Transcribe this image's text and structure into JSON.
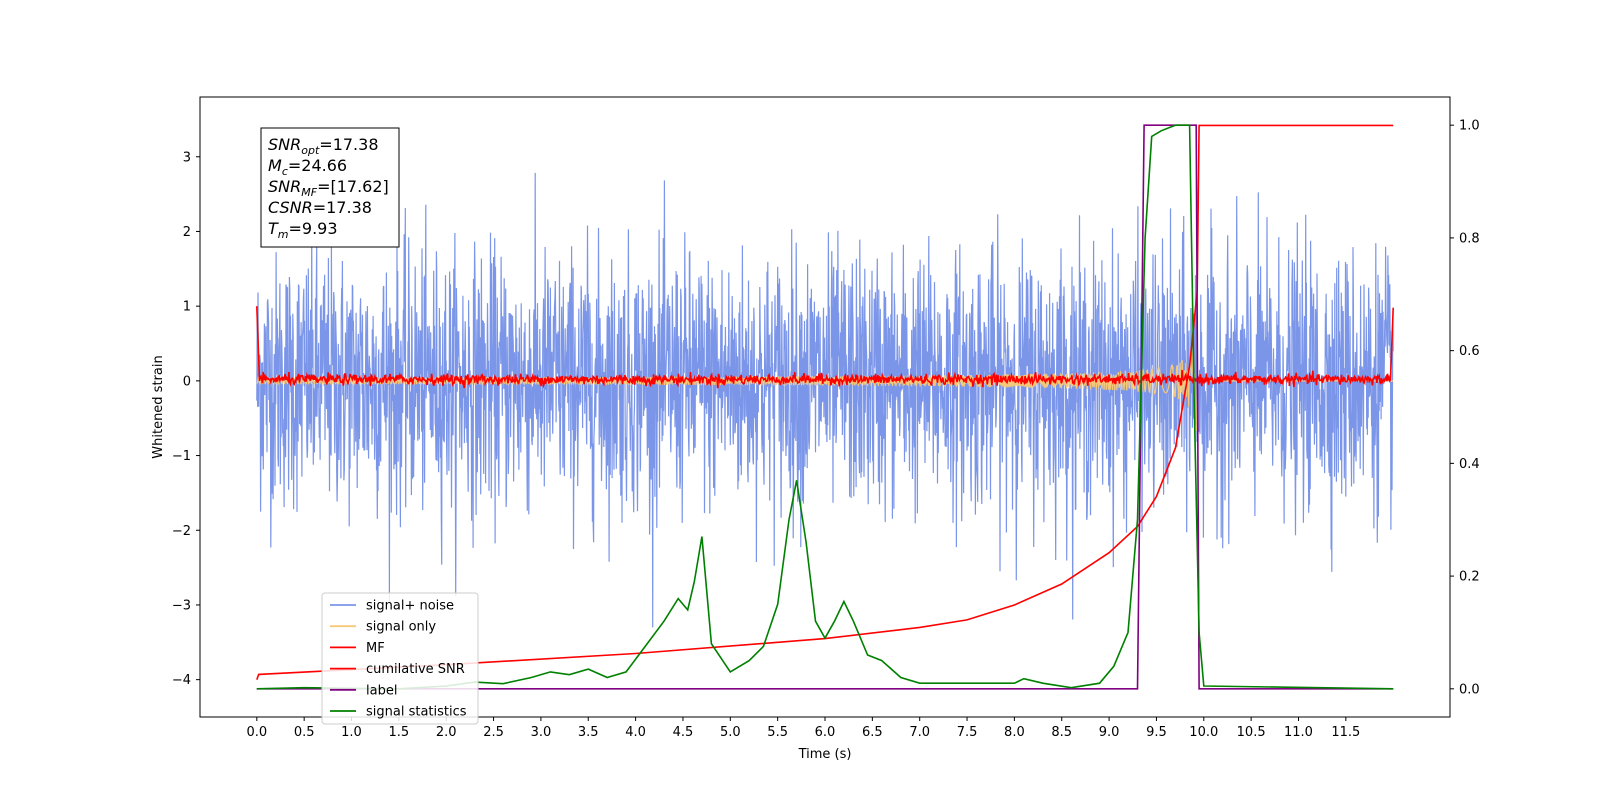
{
  "chart_data": {
    "type": "line",
    "xlabel": "Time (s)",
    "ylabel": "Whitened strain",
    "xlim": [
      -0.6,
      12.6
    ],
    "ylim": [
      -4.5,
      3.8
    ],
    "y2lim": [
      -0.05,
      1.05
    ],
    "x_ticks": [
      "0.0",
      "0.5",
      "1.0",
      "1.5",
      "2.0",
      "2.5",
      "3.0",
      "3.5",
      "4.0",
      "4.5",
      "5.0",
      "5.5",
      "6.0",
      "6.5",
      "7.0",
      "7.5",
      "8.0",
      "8.5",
      "9.0",
      "9.5",
      "10.0",
      "10.5",
      "11.0",
      "11.5"
    ],
    "x_tick_values": [
      0.0,
      0.5,
      1.0,
      1.5,
      2.0,
      2.5,
      3.0,
      3.5,
      4.0,
      4.5,
      5.0,
      5.5,
      6.0,
      6.5,
      7.0,
      7.5,
      8.0,
      8.5,
      9.0,
      9.5,
      10.0,
      10.5,
      11.0,
      11.5
    ],
    "y_ticks": [
      "3",
      "2",
      "1",
      "0",
      "−1",
      "−2",
      "−3",
      "−4"
    ],
    "y_tick_values": [
      3,
      2,
      1,
      0,
      -1,
      -2,
      -3,
      -4
    ],
    "y2_ticks": [
      "1.0",
      "0.8",
      "0.6",
      "0.4",
      "0.2",
      "0.0"
    ],
    "y2_tick_values": [
      1.0,
      0.8,
      0.6,
      0.4,
      0.2,
      0.0
    ],
    "grid": false,
    "legend_position": "lower-left",
    "annotation": {
      "lines": [
        {
          "name": "SNR",
          "sub": "opt",
          "value": "=17.38"
        },
        {
          "name": "M",
          "sub": "c",
          "value": "=24.66"
        },
        {
          "name": "SNR",
          "sub": "MF",
          "value": "=[17.62]"
        },
        {
          "name": "CSNR",
          "sub": "",
          "value": "=17.38"
        },
        {
          "name": "T",
          "sub": "m",
          "value": "=9.93"
        }
      ]
    },
    "series": [
      {
        "name": "signal+ noise",
        "axis": "left",
        "color": "#7b96e8",
        "kind": "noise",
        "amplitude": 0.85,
        "x_start": 0.0,
        "x_end": 12.0
      },
      {
        "name": "signal only",
        "axis": "left",
        "color": "#f5c97a",
        "kind": "chirp",
        "t_merge": 9.93,
        "x_start": 0.0,
        "x_end": 12.0
      },
      {
        "name": "MF",
        "axis": "left",
        "color": "#ff0000",
        "kind": "mf",
        "points": [
          [
            0.0,
            1.0
          ],
          [
            0.02,
            0.1
          ],
          [
            11.98,
            0.1
          ],
          [
            12.0,
            0.98
          ]
        ]
      },
      {
        "name": "cumilative SNR",
        "axis": "left",
        "color": "#ff0000",
        "points": [
          [
            0.0,
            -4.0
          ],
          [
            0.02,
            -3.93
          ],
          [
            2,
            -3.8
          ],
          [
            4,
            -3.65
          ],
          [
            6,
            -3.45
          ],
          [
            7,
            -3.3
          ],
          [
            7.5,
            -3.2
          ],
          [
            8,
            -3.0
          ],
          [
            8.5,
            -2.72
          ],
          [
            9,
            -2.3
          ],
          [
            9.3,
            -1.95
          ],
          [
            9.5,
            -1.55
          ],
          [
            9.7,
            -0.9
          ],
          [
            9.85,
            0.2
          ],
          [
            9.93,
            1.2
          ],
          [
            9.95,
            3.42
          ],
          [
            12.0,
            3.42
          ]
        ]
      },
      {
        "name": "label",
        "axis": "right",
        "color": "#800080",
        "points": [
          [
            0.0,
            0.0
          ],
          [
            9.3,
            0.0
          ],
          [
            9.37,
            1.0
          ],
          [
            9.92,
            1.0
          ],
          [
            9.95,
            0.0
          ],
          [
            12.0,
            0.0
          ]
        ]
      },
      {
        "name": "signal statistics",
        "axis": "right",
        "color": "#008000",
        "points": [
          [
            0.0,
            0.0
          ],
          [
            0.5,
            0.002
          ],
          [
            1.0,
            0.001
          ],
          [
            1.5,
            0.0
          ],
          [
            2.0,
            0.005
          ],
          [
            2.3,
            0.012
          ],
          [
            2.6,
            0.009
          ],
          [
            2.9,
            0.02
          ],
          [
            3.1,
            0.03
          ],
          [
            3.3,
            0.025
          ],
          [
            3.5,
            0.035
          ],
          [
            3.7,
            0.02
          ],
          [
            3.9,
            0.03
          ],
          [
            4.1,
            0.075
          ],
          [
            4.3,
            0.12
          ],
          [
            4.45,
            0.16
          ],
          [
            4.55,
            0.14
          ],
          [
            4.62,
            0.19
          ],
          [
            4.7,
            0.27
          ],
          [
            4.8,
            0.08
          ],
          [
            5.0,
            0.03
          ],
          [
            5.2,
            0.05
          ],
          [
            5.35,
            0.075
          ],
          [
            5.5,
            0.15
          ],
          [
            5.62,
            0.3
          ],
          [
            5.7,
            0.37
          ],
          [
            5.8,
            0.26
          ],
          [
            5.9,
            0.12
          ],
          [
            6.0,
            0.09
          ],
          [
            6.1,
            0.12
          ],
          [
            6.2,
            0.155
          ],
          [
            6.3,
            0.12
          ],
          [
            6.45,
            0.06
          ],
          [
            6.6,
            0.05
          ],
          [
            6.8,
            0.02
          ],
          [
            7.0,
            0.01
          ],
          [
            7.5,
            0.01
          ],
          [
            8.0,
            0.01
          ],
          [
            8.1,
            0.018
          ],
          [
            8.3,
            0.01
          ],
          [
            8.6,
            0.002
          ],
          [
            8.9,
            0.01
          ],
          [
            9.05,
            0.04
          ],
          [
            9.2,
            0.1
          ],
          [
            9.3,
            0.3
          ],
          [
            9.38,
            0.8
          ],
          [
            9.45,
            0.98
          ],
          [
            9.55,
            0.99
          ],
          [
            9.7,
            1.0
          ],
          [
            9.85,
            1.0
          ],
          [
            9.9,
            0.5
          ],
          [
            9.95,
            0.1
          ],
          [
            10.0,
            0.005
          ],
          [
            12.0,
            0.0
          ]
        ]
      }
    ]
  }
}
